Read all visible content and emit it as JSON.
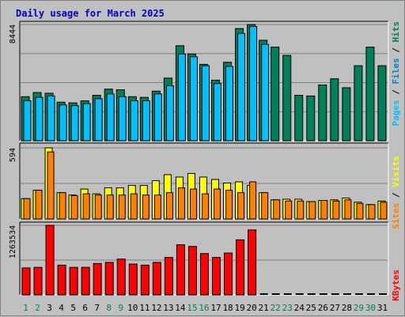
{
  "chart_data": {
    "type": "bar",
    "title": "Daily usage for March 2025",
    "categories": [
      "1",
      "2",
      "3",
      "4",
      "5",
      "6",
      "7",
      "8",
      "9",
      "10",
      "11",
      "12",
      "13",
      "14",
      "15",
      "16",
      "17",
      "18",
      "19",
      "20",
      "21",
      "22",
      "23",
      "24",
      "25",
      "26",
      "27",
      "28",
      "29",
      "30",
      "31"
    ],
    "weekend_days": [
      1,
      2,
      8,
      9,
      15,
      16,
      22,
      23,
      29,
      30
    ],
    "panels": [
      {
        "id": "hits-files-pages",
        "ymax_label": "8444",
        "ymax": 8444,
        "series": [
          {
            "name": "Pages",
            "color": "#0080c0",
            "values": [
              0,
              0,
              0,
              0,
              0,
              0,
              0,
              0,
              0,
              0,
              0,
              0,
              0,
              0,
              0,
              0,
              0,
              0,
              0,
              0,
              0,
              0,
              0,
              0,
              0,
              0,
              0,
              0,
              0,
              0,
              0
            ]
          },
          {
            "name": "Files",
            "color": "#00c0ff",
            "values": [
              2900,
              3150,
              3250,
              2600,
              2550,
              2700,
              3050,
              3400,
              3200,
              2900,
              2900,
              3400,
              4000,
              6300,
              6100,
              5450,
              4150,
              5400,
              7800,
              8300,
              7000,
              0,
              0,
              0,
              0,
              0,
              0,
              0,
              0,
              0,
              0
            ]
          },
          {
            "name": "Hits",
            "color": "#00805a",
            "values": [
              3200,
              3500,
              3450,
              2800,
              2750,
              2900,
              3300,
              3750,
              3700,
              3200,
              3150,
              3600,
              4550,
              6900,
              6300,
              5550,
              4400,
              5700,
              8150,
              8444,
              7300,
              6800,
              6200,
              3300,
              3250,
              4050,
              4500,
              3850,
              5450,
              6800,
              5450
            ]
          }
        ]
      },
      {
        "id": "visits-sites",
        "ymax_label": "594",
        "ymax": 594,
        "series": [
          {
            "name": "Sites",
            "color": "#ff8000",
            "values": [
              170,
              240,
              560,
              220,
              195,
              210,
              200,
              200,
              200,
              210,
              200,
              200,
              220,
              260,
              250,
              210,
              250,
              240,
              220,
              310,
              220,
              160,
              150,
              150,
              145,
              155,
              150,
              160,
              130,
              120,
              140
            ]
          },
          {
            "name": "Visits",
            "color": "#ffff00",
            "values": [
              170,
              240,
              594,
              220,
              200,
              250,
              210,
              260,
              260,
              280,
              280,
              320,
              370,
              350,
              380,
              350,
              330,
              300,
              310,
              280,
              220,
              160,
              165,
              165,
              145,
              155,
              160,
              175,
              140,
              120,
              150
            ]
          }
        ]
      },
      {
        "id": "kbytes",
        "ymax_label": "1263534",
        "ymax": 1263534,
        "series": [
          {
            "name": "KBytes",
            "color": "#ff0000",
            "values": [
              490000,
              500000,
              1263534,
              540000,
              500000,
              500000,
              570000,
              590000,
              650000,
              560000,
              540000,
              590000,
              680000,
              910000,
              880000,
              750000,
              680000,
              760000,
              1000000,
              1180000,
              0,
              0,
              0,
              0,
              0,
              0,
              0,
              0,
              0,
              0,
              0
            ]
          }
        ]
      }
    ],
    "legend": {
      "top": [
        {
          "text": "Pages",
          "color": "#00c0ff"
        },
        {
          "text": " / ",
          "color": "#000000"
        },
        {
          "text": "Files",
          "color": "#0080c0"
        },
        {
          "text": " / ",
          "color": "#000000"
        },
        {
          "text": "Hits",
          "color": "#00805a"
        }
      ],
      "middle": [
        {
          "text": "Sites",
          "color": "#ff8000"
        },
        {
          "text": " / ",
          "color": "#000000"
        },
        {
          "text": "Visits",
          "color": "#ffff00"
        }
      ],
      "bottom": [
        {
          "text": "KBytes",
          "color": "#ff0000"
        }
      ]
    },
    "grid": true
  }
}
